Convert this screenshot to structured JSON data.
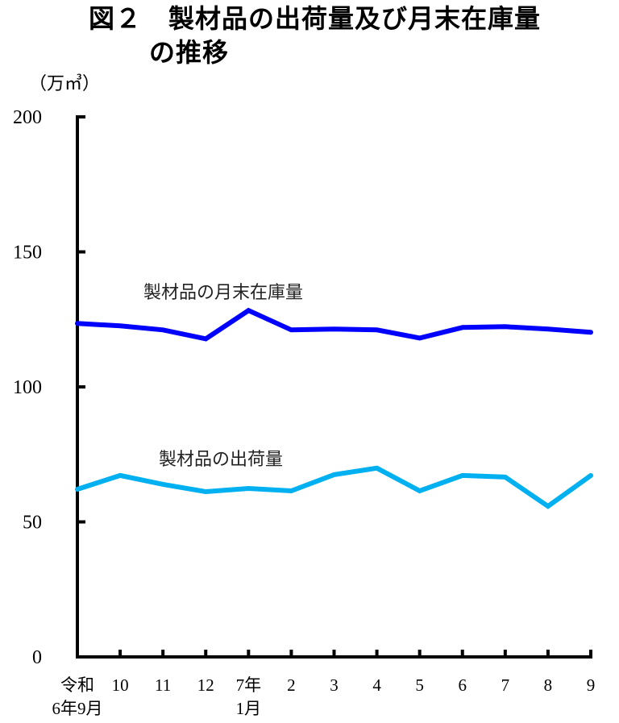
{
  "title_line1": "図２　製材品の出荷量及び月末在庫量",
  "title_line2": "の推移",
  "unit_label": "（万㎥）",
  "chart_data": {
    "type": "line",
    "title": "図２　製材品の出荷量及び月末在庫量の推移",
    "xlabel": "",
    "ylabel": "（万㎥）",
    "ylim": [
      0,
      200
    ],
    "yticks": [
      0,
      50,
      100,
      150,
      200
    ],
    "grid": false,
    "legend_position": "inline labels above lines",
    "categories": [
      "令和6年9月",
      "10",
      "11",
      "12",
      "7年1月",
      "2",
      "3",
      "4",
      "5",
      "6",
      "7",
      "8",
      "9"
    ],
    "x_tick_labels": [
      {
        "line1": "令和",
        "line2": "6年9月"
      },
      {
        "line1": "10",
        "line2": ""
      },
      {
        "line1": "11",
        "line2": ""
      },
      {
        "line1": "12",
        "line2": ""
      },
      {
        "line1": "7年",
        "line2": "1月"
      },
      {
        "line1": "2",
        "line2": ""
      },
      {
        "line1": "3",
        "line2": ""
      },
      {
        "line1": "4",
        "line2": ""
      },
      {
        "line1": "5",
        "line2": ""
      },
      {
        "line1": "6",
        "line2": ""
      },
      {
        "line1": "7",
        "line2": ""
      },
      {
        "line1": "8",
        "line2": ""
      },
      {
        "line1": "9",
        "line2": ""
      }
    ],
    "series": [
      {
        "name": "製材品の月末在庫量",
        "color": "#0000ff",
        "values": [
          123.5,
          122.6,
          121.1,
          117.8,
          128.3,
          121.1,
          121.4,
          121.1,
          118.1,
          122.0,
          122.3,
          121.4,
          120.2
        ]
      },
      {
        "name": "製材品の出荷量",
        "color": "#00b0f0",
        "values": [
          62.1,
          67.2,
          63.9,
          61.2,
          62.4,
          61.5,
          67.5,
          69.9,
          61.5,
          67.2,
          66.6,
          55.8,
          67.2
        ]
      }
    ]
  }
}
